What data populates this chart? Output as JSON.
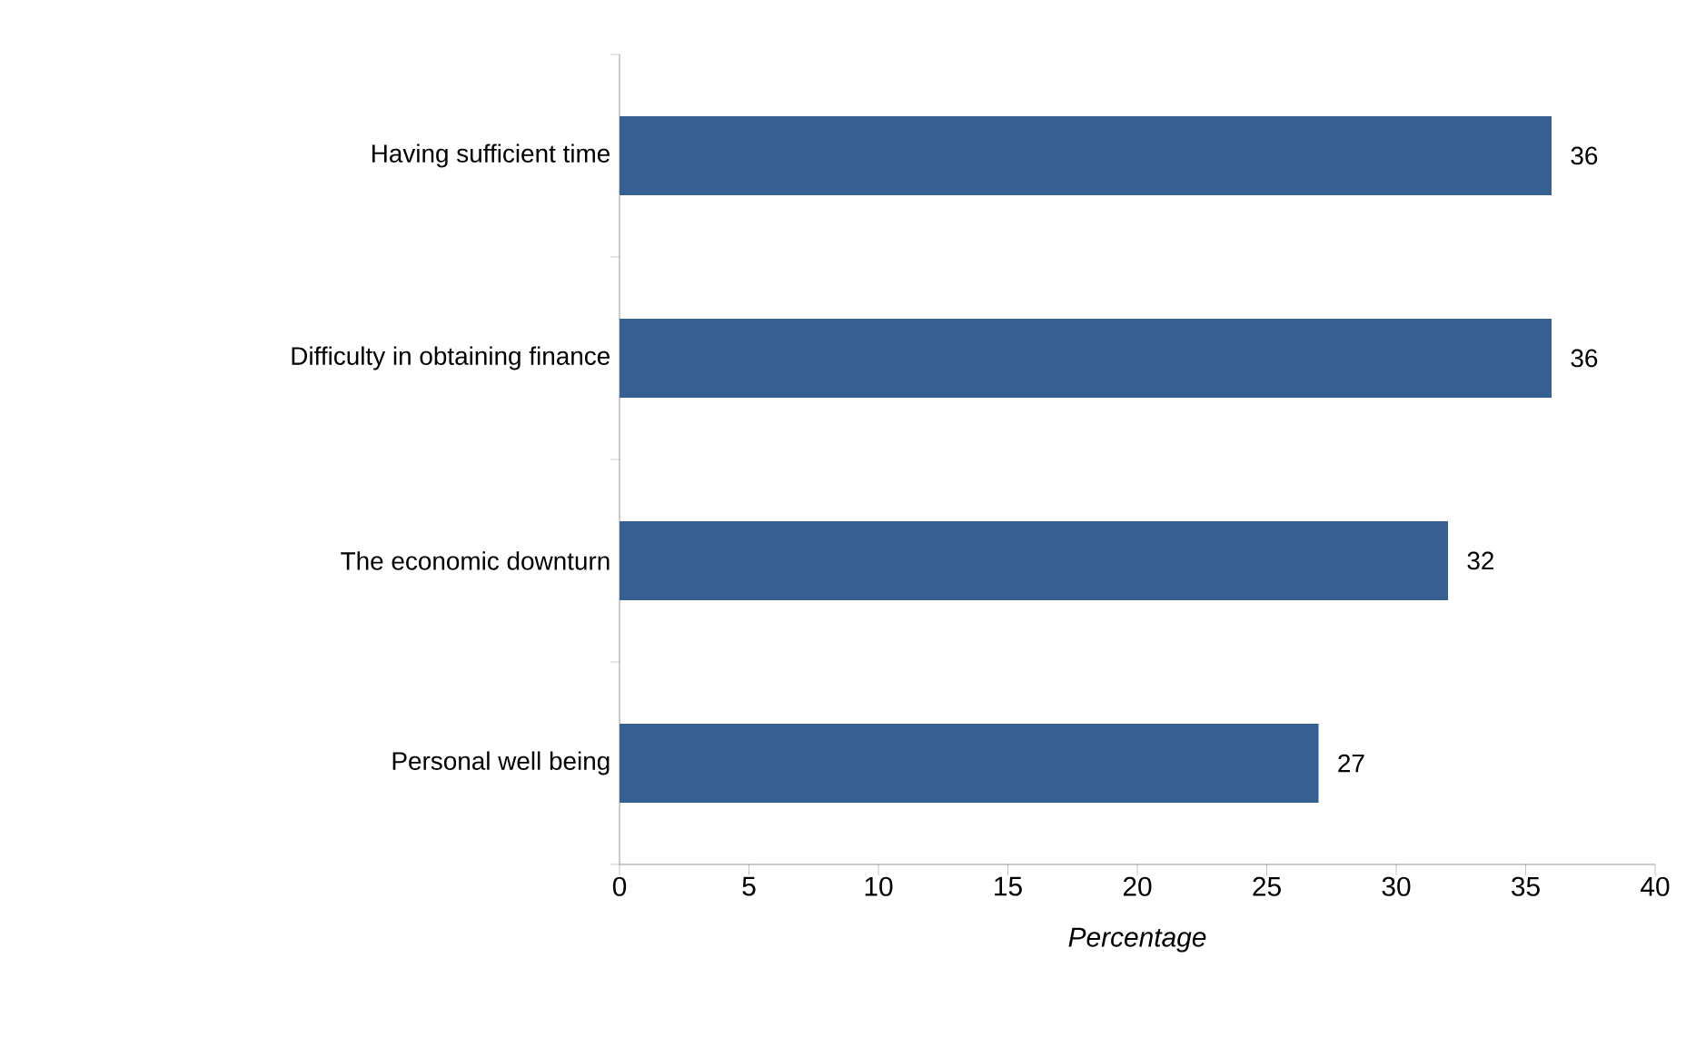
{
  "chart_data": {
    "type": "bar",
    "orientation": "horizontal",
    "xlabel": "Percentage",
    "categories": [
      "Having sufficient time",
      "Difficulty in obtaining finance",
      "The economic downturn",
      "Personal well being"
    ],
    "values": [
      36,
      36,
      32,
      27
    ],
    "color": "#366092",
    "data_labels": true,
    "xlim": [
      0,
      40
    ],
    "xticks": [
      0,
      5,
      10,
      15,
      20,
      25,
      30,
      35,
      40
    ]
  }
}
